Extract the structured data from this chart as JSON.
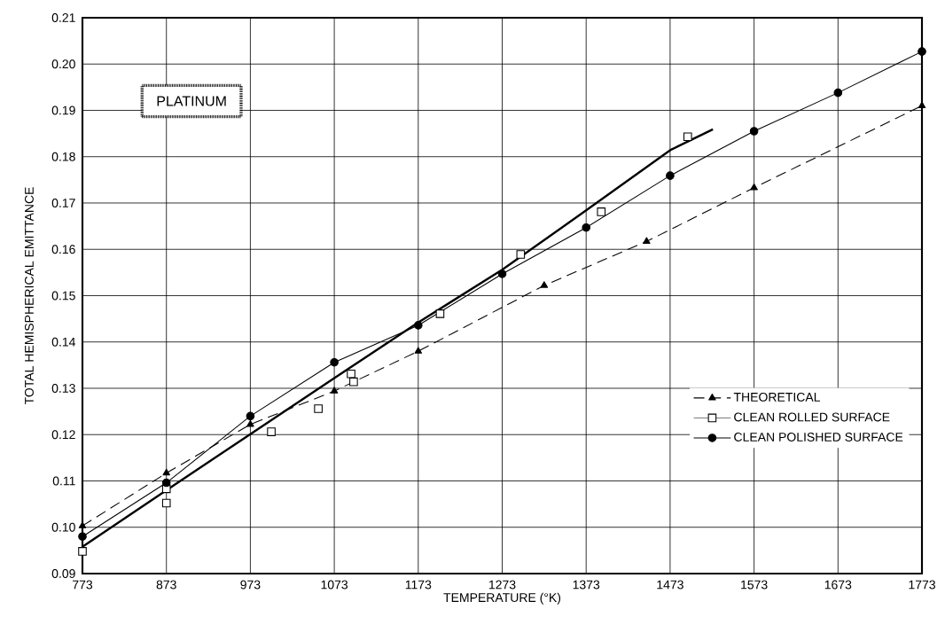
{
  "chart_data": {
    "type": "line",
    "xlabel": "TEMPERATURE (°K)",
    "ylabel": "TOTAL HEMISPHERICAL EMITTANCE",
    "annotations": [
      "PLATINUM"
    ],
    "xlim": [
      773,
      1773
    ],
    "ylim": [
      0.09,
      0.21
    ],
    "xticks": [
      773,
      873,
      973,
      1073,
      1173,
      1273,
      1373,
      1473,
      1573,
      1673,
      1773
    ],
    "yticks": [
      {
        "value": 0.09,
        "label": "0.09"
      },
      {
        "value": 0.1,
        "label": "0.10"
      },
      {
        "value": 0.11,
        "label": "0.11"
      },
      {
        "value": 0.12,
        "label": "0.12"
      },
      {
        "value": 0.13,
        "label": "0.13"
      },
      {
        "value": 0.14,
        "label": "0.14"
      },
      {
        "value": 0.15,
        "label": "0.15"
      },
      {
        "value": 0.16,
        "label": "0.16"
      },
      {
        "value": 0.17,
        "label": "0.17"
      },
      {
        "value": 0.18,
        "label": "0.18"
      },
      {
        "value": 0.19,
        "label": "0.19"
      },
      {
        "value": 0.2,
        "label": "0.20"
      },
      {
        "value": 0.21,
        "label": "0.21"
      }
    ],
    "grid": true,
    "legend": "right",
    "series": [
      {
        "name": "THEORETICAL",
        "type": "line",
        "color": "#000000",
        "marker": "triangle",
        "line_style": "dashed",
        "x": [
          773,
          873,
          973,
          1073,
          1173,
          1323,
          1445,
          1573,
          1773
        ],
        "values": [
          0.1003,
          0.1117,
          0.1222,
          0.1294,
          0.138,
          0.1522,
          0.1617,
          0.1733,
          0.191
        ]
      },
      {
        "name": "CLEAN ROLLED SURFACE",
        "type": "scatter",
        "color": "#000000",
        "marker": "square",
        "x": [
          773,
          873,
          873,
          998,
          1054,
          1093,
          1096,
          1199,
          1295,
          1391,
          1494
        ],
        "values": [
          0.0948,
          0.1052,
          0.1083,
          0.1206,
          0.1256,
          0.1331,
          0.1314,
          0.1461,
          0.1589,
          0.1681,
          0.1843
        ]
      },
      {
        "type": "line",
        "color": "#000000",
        "marker": "none",
        "line_style": "solid",
        "x": [
          773,
          873,
          973,
          1073,
          1173,
          1273,
          1373,
          1473,
          1524
        ],
        "values": [
          0.0958,
          0.108,
          0.1201,
          0.1322,
          0.1442,
          0.1556,
          0.1684,
          0.1814,
          0.1859
        ]
      },
      {
        "name": "CLEAN POLISHED SURFACE",
        "type": "line",
        "color": "#000000",
        "marker": "circle",
        "line_style": "solid",
        "x": [
          773,
          873,
          973,
          1073,
          1173,
          1273,
          1373,
          1473,
          1573,
          1673,
          1773
        ],
        "values": [
          0.098,
          0.1096,
          0.124,
          0.1356,
          0.1436,
          0.1547,
          0.1647,
          0.1759,
          0.1855,
          0.1938,
          0.2027
        ]
      }
    ]
  }
}
